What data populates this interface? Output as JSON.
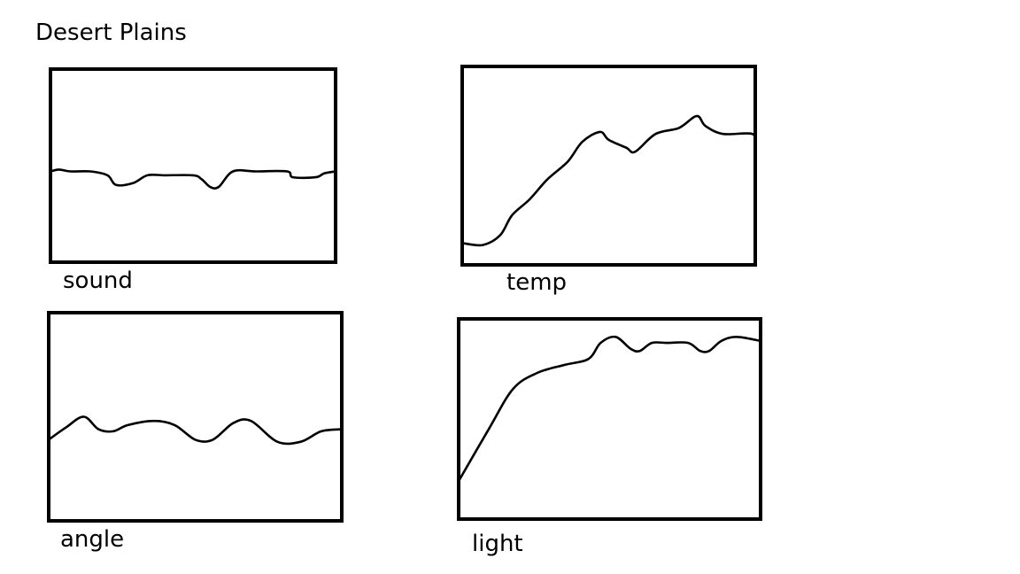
{
  "title": "Desert Plains",
  "chart_data": [
    {
      "id": "sound",
      "type": "line",
      "label": "sound",
      "x": [
        0,
        0.03,
        0.07,
        0.14,
        0.2,
        0.23,
        0.29,
        0.34,
        0.4,
        0.5,
        0.53,
        0.56,
        0.59,
        0.64,
        0.72,
        0.83,
        0.85,
        0.93,
        0.96,
        1.0
      ],
      "values": [
        0.47,
        0.48,
        0.47,
        0.47,
        0.45,
        0.4,
        0.41,
        0.45,
        0.45,
        0.45,
        0.43,
        0.39,
        0.39,
        0.47,
        0.47,
        0.47,
        0.44,
        0.44,
        0.46,
        0.47
      ],
      "xlim": [
        0,
        1
      ],
      "ylim": [
        0,
        1
      ]
    },
    {
      "id": "temp",
      "type": "line",
      "label": "temp",
      "x": [
        0,
        0.07,
        0.13,
        0.17,
        0.23,
        0.29,
        0.36,
        0.41,
        0.47,
        0.5,
        0.56,
        0.59,
        0.66,
        0.74,
        0.8,
        0.83,
        0.89,
        0.99,
        1.0
      ],
      "values": [
        0.11,
        0.1,
        0.15,
        0.25,
        0.33,
        0.43,
        0.52,
        0.62,
        0.67,
        0.63,
        0.59,
        0.57,
        0.66,
        0.69,
        0.75,
        0.7,
        0.66,
        0.66,
        0.6
      ],
      "xlim": [
        0,
        1
      ],
      "ylim": [
        0,
        1
      ]
    },
    {
      "id": "angle",
      "type": "line",
      "label": "angle",
      "x": [
        0,
        0.06,
        0.12,
        0.17,
        0.22,
        0.27,
        0.36,
        0.43,
        0.5,
        0.56,
        0.63,
        0.69,
        0.78,
        0.86,
        0.93,
        1.0
      ],
      "values": [
        0.39,
        0.45,
        0.5,
        0.44,
        0.43,
        0.46,
        0.48,
        0.46,
        0.39,
        0.39,
        0.47,
        0.48,
        0.38,
        0.38,
        0.43,
        0.44
      ],
      "xlim": [
        0,
        1
      ],
      "ylim": [
        0,
        1
      ]
    },
    {
      "id": "light",
      "type": "line",
      "label": "light",
      "x": [
        0,
        0.1,
        0.18,
        0.26,
        0.35,
        0.43,
        0.47,
        0.52,
        0.57,
        0.6,
        0.64,
        0.69,
        0.76,
        0.8,
        0.83,
        0.87,
        0.92,
        1.0
      ],
      "values": [
        0.19,
        0.45,
        0.65,
        0.73,
        0.77,
        0.8,
        0.88,
        0.91,
        0.85,
        0.84,
        0.88,
        0.88,
        0.88,
        0.84,
        0.84,
        0.89,
        0.91,
        0.89
      ],
      "xlim": [
        0,
        1
      ],
      "ylim": [
        0,
        1
      ]
    }
  ]
}
